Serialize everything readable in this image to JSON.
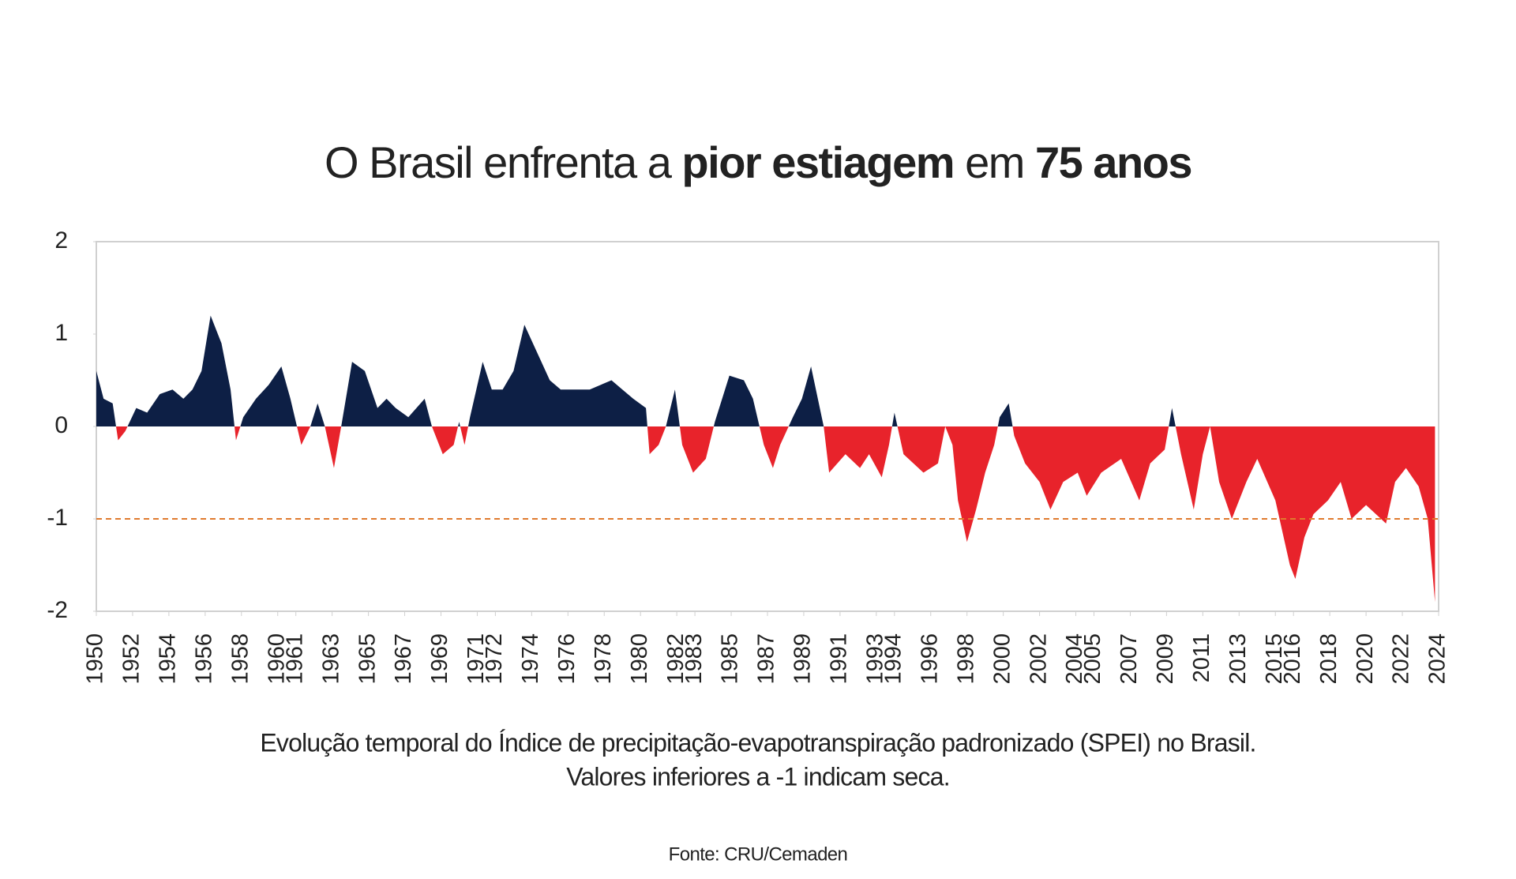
{
  "chart_data": {
    "type": "area",
    "title_parts": [
      {
        "text": "O Brasil enfrenta a ",
        "bold": false
      },
      {
        "text": "pior estiagem",
        "bold": true
      },
      {
        "text": " em ",
        "bold": false
      },
      {
        "text": "75 anos",
        "bold": true
      }
    ],
    "caption_lines": [
      "Evolução temporal do Índice de precipitação-evapotranspiração padronizado (SPEI) no Brasil.",
      "Valores inferiores a  -1 indicam seca."
    ],
    "source": "Fonte: CRU/Cemaden",
    "x": [
      1950,
      1950.4,
      1950.9,
      1951.2,
      1951.6,
      1952.2,
      1952.8,
      1953.5,
      1954.2,
      1954.8,
      1955.3,
      1955.8,
      1956.3,
      1956.9,
      1957.4,
      1957.7,
      1958.1,
      1958.8,
      1959.5,
      1960.2,
      1960.7,
      1961.0,
      1961.3,
      1961.8,
      1962.2,
      1962.6,
      1963.1,
      1963.5,
      1964.1,
      1964.8,
      1965.5,
      1966.0,
      1966.5,
      1967.2,
      1968.1,
      1968.5,
      1969.1,
      1969.7,
      1970.0,
      1970.3,
      1970.6,
      1971.3,
      1971.8,
      1972.4,
      1973.0,
      1973.6,
      1974.3,
      1975.0,
      1975.6,
      1976.4,
      1977.2,
      1978.4,
      1979.0,
      1979.6,
      1980.3,
      1980.5,
      1981.0,
      1981.4,
      1981.9,
      1982.3,
      1982.9,
      1983.6,
      1984.1,
      1984.9,
      1985.7,
      1986.2,
      1986.8,
      1987.3,
      1987.7,
      1988.4,
      1988.9,
      1989.4,
      1990.1,
      1990.4,
      1991.3,
      1992.1,
      1992.6,
      1993.3,
      1993.7,
      1994.0,
      1994.5,
      1995.6,
      1996.4,
      1996.8,
      1997.2,
      1997.5,
      1998.0,
      1998.5,
      1999.0,
      1999.5,
      1999.8,
      2000.3,
      2000.6,
      2001.2,
      2002.0,
      2002.6,
      2003.3,
      2004.1,
      2004.6,
      2005.4,
      2006.5,
      2007.5,
      2008.1,
      2008.9,
      2009.3,
      2009.8,
      2010.5,
      2011.0,
      2011.4,
      2011.9,
      2012.6,
      2013.4,
      2014.0,
      2015.0,
      2015.8,
      2016.1,
      2016.6,
      2017.1,
      2017.9,
      2018.6,
      2019.2,
      2020.0,
      2021.1,
      2021.6,
      2022.2,
      2022.9,
      2023.4,
      2023.8
    ],
    "values": [
      0.6,
      0.3,
      0.25,
      -0.15,
      -0.05,
      0.2,
      0.15,
      0.35,
      0.4,
      0.3,
      0.4,
      0.6,
      1.2,
      0.9,
      0.4,
      -0.15,
      0.1,
      0.3,
      0.45,
      0.65,
      0.3,
      0.05,
      -0.2,
      0,
      0.25,
      0,
      -0.45,
      0,
      0.7,
      0.6,
      0.2,
      0.3,
      0.2,
      0.1,
      0.3,
      0,
      -0.3,
      -0.2,
      0.05,
      -0.2,
      0.1,
      0.7,
      0.4,
      0.4,
      0.6,
      1.1,
      0.8,
      0.5,
      0.4,
      0.4,
      0.4,
      0.5,
      0.4,
      0.3,
      0.2,
      -0.3,
      -0.2,
      0,
      0.4,
      -0.2,
      -0.5,
      -0.35,
      0.05,
      0.55,
      0.5,
      0.3,
      -0.2,
      -0.45,
      -0.2,
      0.1,
      0.3,
      0.65,
      0,
      -0.5,
      -0.3,
      -0.45,
      -0.3,
      -0.55,
      -0.2,
      0.15,
      -0.3,
      -0.5,
      -0.4,
      0,
      -0.2,
      -0.8,
      -1.25,
      -0.9,
      -0.5,
      -0.2,
      0.1,
      0.25,
      -0.1,
      -0.4,
      -0.6,
      -0.9,
      -0.6,
      -0.5,
      -0.75,
      -0.5,
      -0.35,
      -0.8,
      -0.4,
      -0.25,
      0.2,
      -0.3,
      -0.9,
      -0.3,
      0,
      -0.6,
      -1.0,
      -0.6,
      -0.35,
      -0.8,
      -1.5,
      -1.65,
      -1.2,
      -0.95,
      -0.8,
      -0.6,
      -1.0,
      -0.85,
      -1.05,
      -0.6,
      -0.45,
      -0.65,
      -1.0,
      -1.9
    ],
    "positive_color": "#0d1f45",
    "negative_color": "#e8232b",
    "threshold": -1,
    "threshold_color": "#e07a2e",
    "xlim": [
      1950,
      2024
    ],
    "ylim": [
      -2,
      2
    ],
    "yticks": [
      2,
      1,
      0,
      -1,
      -2
    ],
    "xticks": [
      1950,
      1952,
      1954,
      1956,
      1958,
      1960,
      1961,
      1963,
      1965,
      1967,
      1969,
      1971,
      1972,
      1974,
      1976,
      1978,
      1980,
      1982,
      1983,
      1985,
      1987,
      1989,
      1991,
      1993,
      1994,
      1996,
      1998,
      2000,
      2002,
      2004,
      2005,
      2007,
      2009,
      2011,
      2013,
      2015,
      2016,
      2018,
      2020,
      2022,
      2024
    ]
  }
}
